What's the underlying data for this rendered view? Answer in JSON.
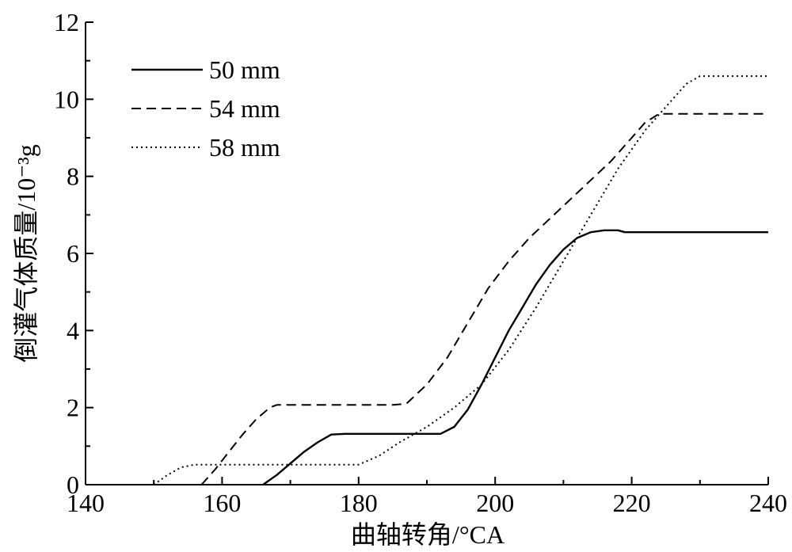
{
  "chart_data": {
    "type": "line",
    "xlabel": "曲轴转角/°CA",
    "ylabel": "倒灌气体质量/10⁻³g",
    "xlim": [
      140,
      240
    ],
    "ylim": [
      0,
      12
    ],
    "xticks": [
      "140",
      "160",
      "180",
      "200",
      "220",
      "240"
    ],
    "yticks": [
      "0",
      "2",
      "4",
      "6",
      "8",
      "10",
      "12"
    ],
    "grid": false,
    "legend_position": "top-left",
    "series": [
      {
        "name": "50 mm",
        "style": "solid",
        "x": [
          166,
          168,
          170,
          172,
          174,
          176,
          178,
          180,
          182,
          184,
          186,
          188,
          190,
          192,
          194,
          196,
          198,
          200,
          202,
          204,
          206,
          208,
          210,
          212,
          214,
          216,
          218,
          219,
          220,
          240
        ],
        "y": [
          0,
          0.25,
          0.55,
          0.85,
          1.1,
          1.3,
          1.32,
          1.32,
          1.32,
          1.32,
          1.32,
          1.32,
          1.32,
          1.32,
          1.5,
          1.95,
          2.6,
          3.3,
          4.0,
          4.6,
          5.2,
          5.7,
          6.1,
          6.4,
          6.55,
          6.6,
          6.6,
          6.55,
          6.55,
          6.55
        ]
      },
      {
        "name": "54 mm",
        "style": "dashed",
        "x": [
          157,
          159,
          161,
          163,
          165,
          167,
          168,
          170,
          175,
          180,
          185,
          187,
          190,
          193,
          196,
          199,
          202,
          205,
          208,
          211,
          214,
          217,
          220,
          222,
          224,
          240
        ],
        "y": [
          0,
          0.4,
          0.85,
          1.3,
          1.7,
          2.0,
          2.07,
          2.07,
          2.07,
          2.07,
          2.07,
          2.1,
          2.6,
          3.3,
          4.2,
          5.1,
          5.8,
          6.4,
          6.9,
          7.4,
          7.9,
          8.4,
          9.0,
          9.4,
          9.62,
          9.62
        ]
      },
      {
        "name": "58 mm",
        "style": "dotted",
        "x": [
          150,
          152,
          154,
          156,
          158,
          160,
          165,
          170,
          175,
          180,
          183,
          186,
          190,
          194,
          198,
          202,
          206,
          210,
          214,
          218,
          222,
          226,
          228,
          230,
          240
        ],
        "y": [
          0,
          0.25,
          0.45,
          0.52,
          0.52,
          0.52,
          0.52,
          0.52,
          0.52,
          0.52,
          0.75,
          1.1,
          1.5,
          2.0,
          2.6,
          3.5,
          4.6,
          5.8,
          7.0,
          8.2,
          9.2,
          10.0,
          10.4,
          10.6,
          10.6
        ]
      }
    ]
  }
}
